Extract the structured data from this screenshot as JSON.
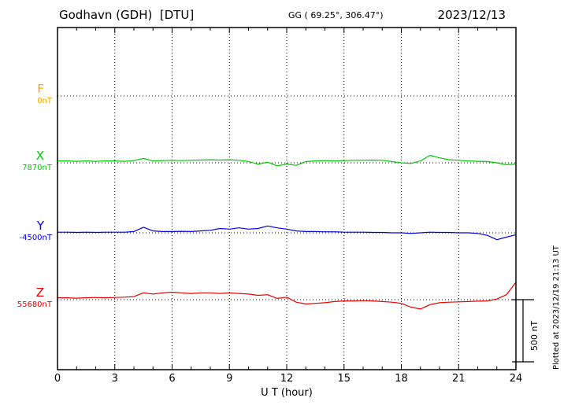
{
  "header": {
    "title": "Godhavn (GDH)  [DTU]",
    "coords": "GG ( 69.25°, 306.47°)",
    "date": "2023/12/13"
  },
  "axis": {
    "xlabel": "U T (hour)"
  },
  "scale_bar": {
    "label": "500 nT"
  },
  "plotted_at": "Plotted at 2023/12/19 21:13 UT",
  "channels": [
    {
      "letter": "F",
      "value_label": "0nT",
      "color": "#ffa500"
    },
    {
      "letter": "X",
      "value_label": "7870nT",
      "color": "#00c800"
    },
    {
      "letter": "Y",
      "value_label": "-4500nT",
      "color": "#0000e0"
    },
    {
      "letter": "Z",
      "value_label": "55680nT",
      "color": "#e80000"
    }
  ],
  "chart_data": {
    "type": "line",
    "title": "Godhavn (GDH) [DTU] magnetogram 2023/12/13",
    "xlabel": "U T (hour)",
    "x_range": [
      0,
      24
    ],
    "x_ticks": [
      0,
      3,
      6,
      9,
      12,
      15,
      18,
      21,
      24
    ],
    "scale_bar_nT": 500,
    "grid": "dotted vertical lines every 3 hours, dotted horizontal baseline per channel",
    "x_hours": [
      0,
      0.5,
      1,
      1.5,
      2,
      2.5,
      3,
      3.5,
      4,
      4.5,
      5,
      5.5,
      6,
      6.5,
      7,
      7.5,
      8,
      8.5,
      9,
      9.5,
      10,
      10.5,
      11,
      11.5,
      12,
      12.5,
      13,
      13.5,
      14,
      14.5,
      15,
      15.5,
      16,
      16.5,
      17,
      17.5,
      18,
      18.5,
      19,
      19.5,
      20,
      20.5,
      21,
      21.5,
      22,
      22.5,
      23,
      23.5,
      24
    ],
    "series": [
      {
        "name": "F",
        "baseline_nT": 0,
        "color": "#ffa500",
        "offsets_nT": null
      },
      {
        "name": "X",
        "baseline_nT": 7870,
        "color": "#00c800",
        "offsets_nT": [
          15,
          15,
          12,
          15,
          12,
          15,
          15,
          12,
          18,
          35,
          15,
          18,
          20,
          18,
          20,
          22,
          25,
          22,
          25,
          20,
          10,
          -10,
          5,
          -25,
          -10,
          -20,
          10,
          15,
          18,
          15,
          18,
          20,
          20,
          22,
          20,
          10,
          0,
          -5,
          15,
          60,
          40,
          25,
          20,
          15,
          12,
          10,
          0,
          -15,
          -10
        ]
      },
      {
        "name": "Y",
        "baseline_nT": -4500,
        "color": "#0000e0",
        "offsets_nT": [
          5,
          5,
          3,
          5,
          3,
          5,
          5,
          5,
          10,
          45,
          15,
          10,
          10,
          12,
          10,
          15,
          20,
          35,
          30,
          40,
          30,
          35,
          55,
          40,
          30,
          15,
          10,
          10,
          8,
          8,
          5,
          5,
          5,
          3,
          3,
          0,
          0,
          -5,
          0,
          5,
          3,
          3,
          0,
          0,
          -5,
          -20,
          -55,
          -35,
          -15
        ]
      },
      {
        "name": "Z",
        "baseline_nT": 55680,
        "color": "#e80000",
        "offsets_nT": [
          15,
          15,
          12,
          15,
          18,
          15,
          18,
          20,
          25,
          55,
          45,
          55,
          60,
          55,
          50,
          55,
          55,
          50,
          55,
          50,
          45,
          35,
          40,
          10,
          20,
          -20,
          -35,
          -30,
          -25,
          -15,
          -10,
          -10,
          -8,
          -10,
          -15,
          -20,
          -30,
          -60,
          -75,
          -40,
          -25,
          -20,
          -18,
          -15,
          -12,
          -10,
          5,
          40,
          140
        ]
      }
    ]
  }
}
